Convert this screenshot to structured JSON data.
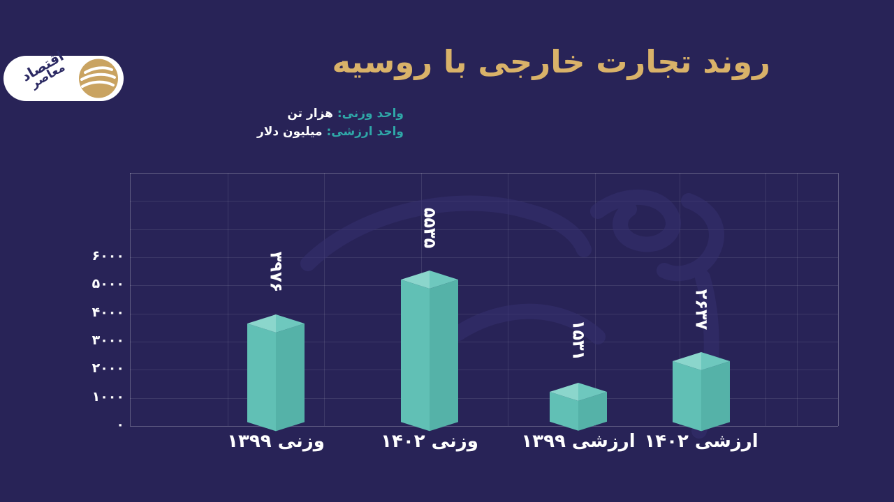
{
  "page": {
    "background_color": "#282357"
  },
  "logo": {
    "word1": "اقتصاد",
    "word2": "معاصر",
    "circle_color": "#c9a361"
  },
  "header": {
    "title": "روند تجارت خارجی با روسیه",
    "title_color": "#d9b269"
  },
  "legend_notes": {
    "weight_label": "واحد وزنی:",
    "weight_value": "هزار تن",
    "value_label": "واحد ارزشی:",
    "value_value": "میلیون دلار",
    "label_color": "#2fa8a8"
  },
  "chart_data": {
    "type": "bar",
    "title": "روند تجارت خارجی با روسیه",
    "unit_weight": "هزار تن (واحد وزنی)",
    "unit_value": "میلیون دلار (واحد ارزشی)",
    "categories": [
      "وزنی ۱۳۹۹",
      "وزنی ۱۴۰۲",
      "ارزشی ۱۳۹۹",
      "ارزشی ۱۴۰۲"
    ],
    "values": [
      3976,
      5535,
      1531,
      2637
    ],
    "value_labels": [
      "۳۹۷۶",
      "۵۵۳۵",
      "۱۵۳۱",
      "۲۶۳۷"
    ],
    "ylim": [
      0,
      9000
    ],
    "yticks": [
      0,
      1000,
      2000,
      3000,
      4000,
      5000,
      6000
    ],
    "ytick_labels": [
      "۰",
      "۱۰۰۰",
      "۲۰۰۰",
      "۳۰۰۰",
      "۴۰۰۰",
      "۵۰۰۰",
      "۶۰۰۰"
    ],
    "grid": true,
    "legend_position": "none",
    "bar_colors": {
      "top_left": "#8bd6cc",
      "top_right": "#6ec8be",
      "front_left": "#61c0b5",
      "front_right": "#55b2a8"
    }
  }
}
